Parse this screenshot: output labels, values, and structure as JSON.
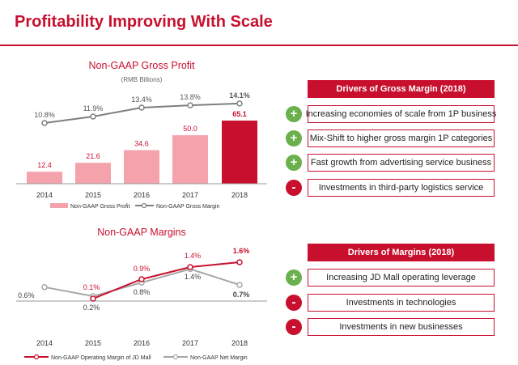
{
  "page": {
    "title": "Profitability Improving With Scale"
  },
  "chart_data": [
    {
      "type": "bar",
      "title": "Non-GAAP Gross Profit",
      "subtitle": "(RMB Billions)",
      "categories": [
        "2014",
        "2015",
        "2016",
        "2017",
        "2018"
      ],
      "series": [
        {
          "name": "Non-GAAP Gross Profit",
          "values": [
            12.4,
            21.6,
            34.6,
            50.0,
            65.1
          ],
          "value_labels": [
            "12.4",
            "21.6",
            "34.6",
            "50.0",
            "65.1"
          ],
          "color": "#f4a3ad",
          "highlight_color": "#c8102e"
        },
        {
          "name": "Non-GAAP Gross Margin",
          "type": "line",
          "values": [
            10.8,
            11.9,
            13.4,
            13.8,
            14.1
          ],
          "value_labels": [
            "10.8%",
            "11.9%",
            "13.4%",
            "13.8%",
            "14.1%"
          ],
          "color": "#7f7f7f"
        }
      ],
      "ylim": [
        0,
        70
      ],
      "legend": "bottom",
      "grid": false
    },
    {
      "type": "line",
      "title": "Non-GAAP Margins",
      "categories": [
        "2014",
        "2015",
        "2016",
        "2017",
        "2018"
      ],
      "series": [
        {
          "name": "Non-GAAP Operating Margin of JD Mall",
          "values": [
            null,
            0.1,
            0.9,
            1.4,
            1.6
          ],
          "value_labels": [
            "",
            "0.1%",
            "0.9%",
            "1.4%",
            "1.6%"
          ],
          "color": "#c8102e"
        },
        {
          "name": "Non-GAAP Net Margin",
          "values": [
            0.6,
            0.2,
            0.8,
            1.4,
            0.7
          ],
          "value_labels": [
            "0.6%",
            "0.2%",
            "0.8%",
            "1.4%",
            "0.7%"
          ],
          "color": "#a6a6a6"
        }
      ],
      "ylim": [
        -0.5,
        2.5
      ],
      "legend": "bottom",
      "grid": false
    }
  ],
  "drivers_gross": {
    "header": "Drivers of Gross Margin (2018)",
    "items": [
      {
        "sign": "+",
        "kind": "plus",
        "text": "Increasing economies of scale from 1P business"
      },
      {
        "sign": "+",
        "kind": "plus",
        "text": "Mix-Shift to higher gross margin 1P categories"
      },
      {
        "sign": "+",
        "kind": "plus",
        "text": "Fast growth from advertising service business"
      },
      {
        "sign": "-",
        "kind": "minus",
        "text": "Investments in third-party logistics service"
      }
    ]
  },
  "drivers_margins": {
    "header": "Drivers of Margins (2018)",
    "items": [
      {
        "sign": "+",
        "kind": "plus",
        "text": "Increasing JD Mall operating leverage"
      },
      {
        "sign": "-",
        "kind": "minus",
        "text": "Investments in technologies"
      },
      {
        "sign": "-",
        "kind": "minus",
        "text": "Investments in new businesses"
      }
    ]
  },
  "colors": {
    "accent": "#c8102e",
    "positive": "#6ab04c",
    "bar_light": "#f4a3ad",
    "line_gray": "#7f7f7f"
  }
}
